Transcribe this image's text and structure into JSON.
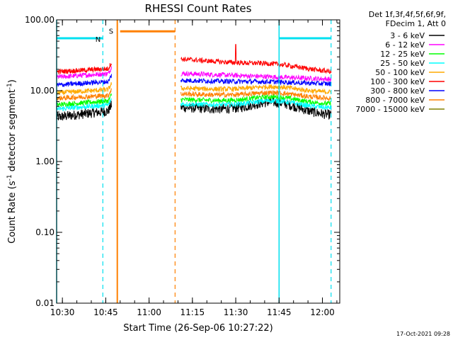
{
  "chart_data": {
    "type": "line",
    "title": "RHESSI Count Rates",
    "xlabel": "Start Time (26-Sep-06 10:27:22)",
    "ylabel_main": "Count Rate (s",
    "ylabel_sup": "-1",
    "ylabel_tail": " detector segment",
    "ylabel_sup2": "-1",
    "ylabel_close": ")",
    "y_scale": "log",
    "ylim": [
      0.01,
      100
    ],
    "xlim_minutes": [
      10.4667,
      12.1
    ],
    "x_ticks": [
      {
        "label": "10:30",
        "t": 10.5
      },
      {
        "label": "10:45",
        "t": 10.75
      },
      {
        "label": "11:00",
        "t": 11.0
      },
      {
        "label": "11:15",
        "t": 11.25
      },
      {
        "label": "11:30",
        "t": 11.5
      },
      {
        "label": "11:45",
        "t": 11.75
      },
      {
        "label": "12:00",
        "t": 12.0
      }
    ],
    "y_ticks": [
      {
        "label": "0.01",
        "v": 0.01
      },
      {
        "label": "0.10",
        "v": 0.1
      },
      {
        "label": "1.00",
        "v": 1
      },
      {
        "label": "10.00",
        "v": 10
      },
      {
        "label": "100.00",
        "v": 100
      }
    ],
    "legend_header": [
      "Det 1f,3f,4f,5f,6f,9f,",
      "FDecim 1, Att 0"
    ],
    "series": [
      {
        "name": "3 - 6 keV",
        "color": "#000000",
        "seg1_start": 4.2,
        "seg1_end": 5.2,
        "seg2_start": 5.8,
        "seg2_hump": 7.0,
        "seg2_end": 4.5
      },
      {
        "name": "6 - 12 keV",
        "color": "#ff00ff",
        "seg1_start": 15.5,
        "seg1_end": 17.5,
        "seg2_start": 17.5,
        "seg2_hump": 16.0,
        "seg2_end": 14.5
      },
      {
        "name": "12 - 25 keV",
        "color": "#00ff00",
        "seg1_start": 6.3,
        "seg1_end": 7.2,
        "seg2_start": 7.5,
        "seg2_hump": 8.3,
        "seg2_end": 6.5
      },
      {
        "name": "25 - 50 keV",
        "color": "#00ffff",
        "seg1_start": 5.5,
        "seg1_end": 6.3,
        "seg2_start": 6.5,
        "seg2_hump": 7.3,
        "seg2_end": 5.7
      },
      {
        "name": "50 - 100 keV",
        "color": "#ffaa00",
        "seg1_start": 9.3,
        "seg1_end": 10.4,
        "seg2_start": 10.8,
        "seg2_hump": 11.5,
        "seg2_end": 9.5
      },
      {
        "name": "100 - 300 keV",
        "color": "#ff0000",
        "seg1_start": 18.5,
        "seg1_end": 20.5,
        "seg2_start": 28.0,
        "seg2_hump": 25.0,
        "seg2_end": 18.5
      },
      {
        "name": "300 - 800 keV",
        "color": "#0000ff",
        "seg1_start": 12.0,
        "seg1_end": 13.5,
        "seg2_start": 14.0,
        "seg2_hump": 13.5,
        "seg2_end": 12.5
      },
      {
        "name": "800 - 7000 keV",
        "color": "#ff8000",
        "seg1_start": 7.8,
        "seg1_end": 8.6,
        "seg2_start": 9.0,
        "seg2_hump": 9.5,
        "seg2_end": 7.8
      },
      {
        "name": "7000 - 15000 keV",
        "color": "#808000",
        "seg1_start": null,
        "seg1_end": null,
        "seg2_start": null,
        "seg2_hump": null,
        "seg2_end": null
      }
    ],
    "segments": [
      {
        "start": 10.4667,
        "end": 10.7833
      },
      {
        "start": 11.1833,
        "end": 12.05
      }
    ],
    "spike": {
      "t": 11.5,
      "peak": 45,
      "series": "100 - 300 keV"
    },
    "night_intervals": [
      {
        "label": "N",
        "start": 10.4667,
        "end": 10.7333,
        "color": "#00e0f0"
      },
      {
        "label": "",
        "start": 11.75,
        "end": 12.05,
        "color": "#00e0f0"
      }
    ],
    "saa_interval": {
      "label": "S",
      "start": 10.8167,
      "end": 11.15,
      "color": "#ff8000"
    },
    "indicator_level": 55
  },
  "timestamp": "17-Oct-2021 09:28"
}
